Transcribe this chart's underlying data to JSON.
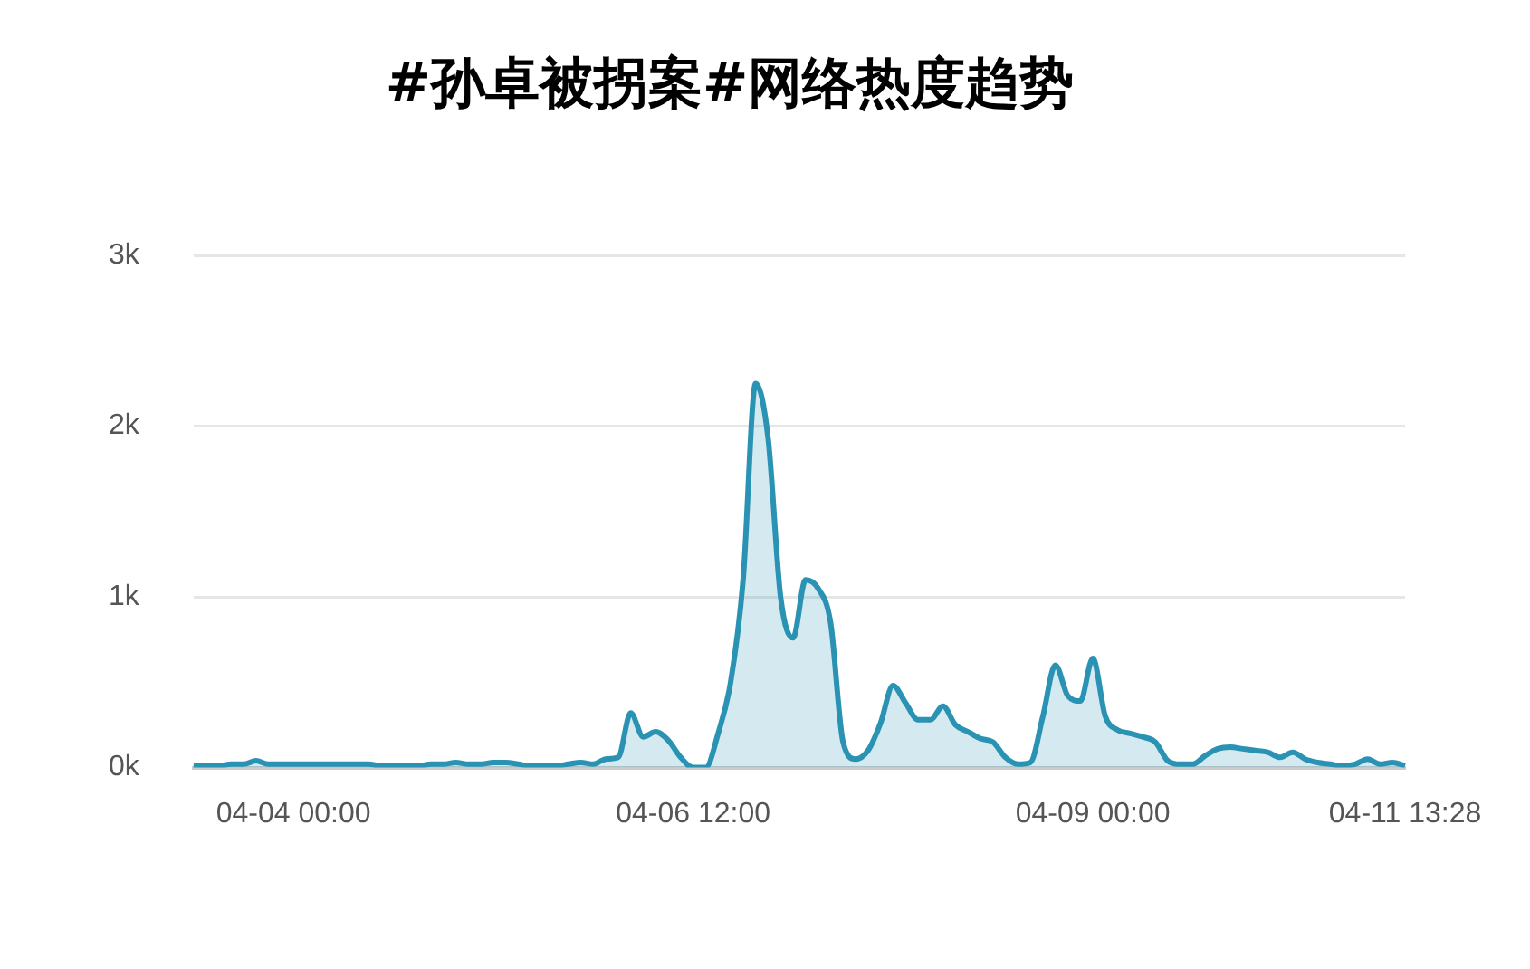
{
  "chart_data": {
    "type": "area",
    "title": "#孙卓被拐案#网络热度趋势",
    "categories": [
      null,
      null,
      null,
      null,
      null,
      null,
      null,
      null,
      "04-04 00:00",
      null,
      null,
      null,
      null,
      null,
      null,
      null,
      null,
      null,
      null,
      null,
      null,
      null,
      null,
      null,
      null,
      null,
      null,
      null,
      null,
      null,
      null,
      null,
      null,
      null,
      null,
      null,
      null,
      null,
      null,
      null,
      "04-06 12:00",
      null,
      null,
      null,
      null,
      null,
      null,
      null,
      null,
      null,
      null,
      null,
      null,
      null,
      null,
      null,
      null,
      null,
      null,
      null,
      null,
      null,
      null,
      null,
      null,
      null,
      null,
      null,
      null,
      null,
      null,
      null,
      "04-09 00:00",
      null,
      null,
      null,
      null,
      null,
      null,
      null,
      null,
      null,
      null,
      null,
      null,
      null,
      null,
      null,
      null,
      null,
      null,
      null,
      null,
      null,
      null,
      null,
      null,
      "04-11 13:28"
    ],
    "series": [
      {
        "color": "#2a93b3",
        "values": [
          10,
          10,
          10,
          20,
          20,
          40,
          20,
          20,
          20,
          20,
          20,
          20,
          20,
          20,
          20,
          10,
          10,
          10,
          10,
          20,
          20,
          30,
          20,
          20,
          30,
          30,
          20,
          10,
          10,
          10,
          20,
          30,
          20,
          50,
          60,
          320,
          180,
          210,
          160,
          60,
          0,
          0,
          200,
          500,
          1100,
          2250,
          1930,
          1000,
          760,
          1100,
          1050,
          850,
          150,
          50,
          100,
          260,
          480,
          380,
          280,
          280,
          360,
          250,
          210,
          170,
          150,
          60,
          20,
          30,
          300,
          600,
          420,
          390,
          640,
          300,
          220,
          200,
          180,
          150,
          40,
          20,
          20,
          70,
          110,
          120,
          110,
          100,
          90,
          60,
          90,
          50,
          30,
          20,
          10,
          20,
          50,
          20,
          30,
          10
        ]
      }
    ],
    "ylim": [
      0,
      3000
    ],
    "yticks": [
      {
        "value": 0,
        "label": "0k"
      },
      {
        "value": 1000,
        "label": "1k"
      },
      {
        "value": 2000,
        "label": "2k"
      },
      {
        "value": 3000,
        "label": "3k"
      }
    ],
    "grid": "y",
    "legend": false,
    "marker": "none"
  }
}
